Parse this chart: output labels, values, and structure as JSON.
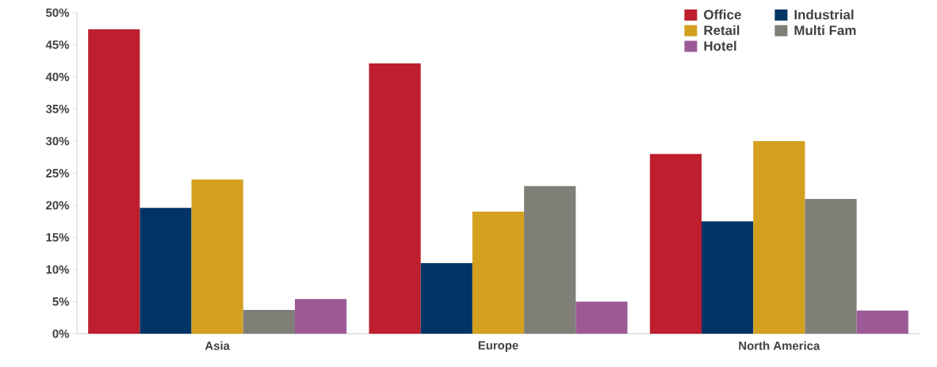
{
  "chart_data": {
    "type": "bar",
    "categories": [
      "Asia",
      "Europe",
      "North America"
    ],
    "series": [
      {
        "name": "Office",
        "color": "#be1e2d",
        "values": [
          47.4,
          42.1,
          28
        ]
      },
      {
        "name": "Industrial",
        "color": "#003366",
        "values": [
          19.6,
          11,
          17.5
        ]
      },
      {
        "name": "Retail",
        "color": "#d4a020",
        "values": [
          24,
          19,
          30
        ]
      },
      {
        "name": "Multi Fam",
        "color": "#7f7f78",
        "values": [
          3.7,
          23,
          21
        ]
      },
      {
        "name": "Hotel",
        "color": "#9b5a96",
        "values": [
          5.4,
          5,
          3.6
        ]
      }
    ],
    "ylim": [
      0,
      50
    ],
    "yticks": [
      {
        "value": 0,
        "label": "0%"
      },
      {
        "value": 5,
        "label": "5%"
      },
      {
        "value": 10,
        "label": "10%"
      },
      {
        "value": 15,
        "label": "15%"
      },
      {
        "value": 20,
        "label": "20%"
      },
      {
        "value": 25,
        "label": "25%"
      },
      {
        "value": 30,
        "label": "30%"
      },
      {
        "value": 35,
        "label": "35%"
      },
      {
        "value": 40,
        "label": "40%"
      },
      {
        "value": 45,
        "label": "45%"
      },
      {
        "value": 50,
        "label": "50%"
      }
    ],
    "legend": "top right",
    "grid": false
  }
}
